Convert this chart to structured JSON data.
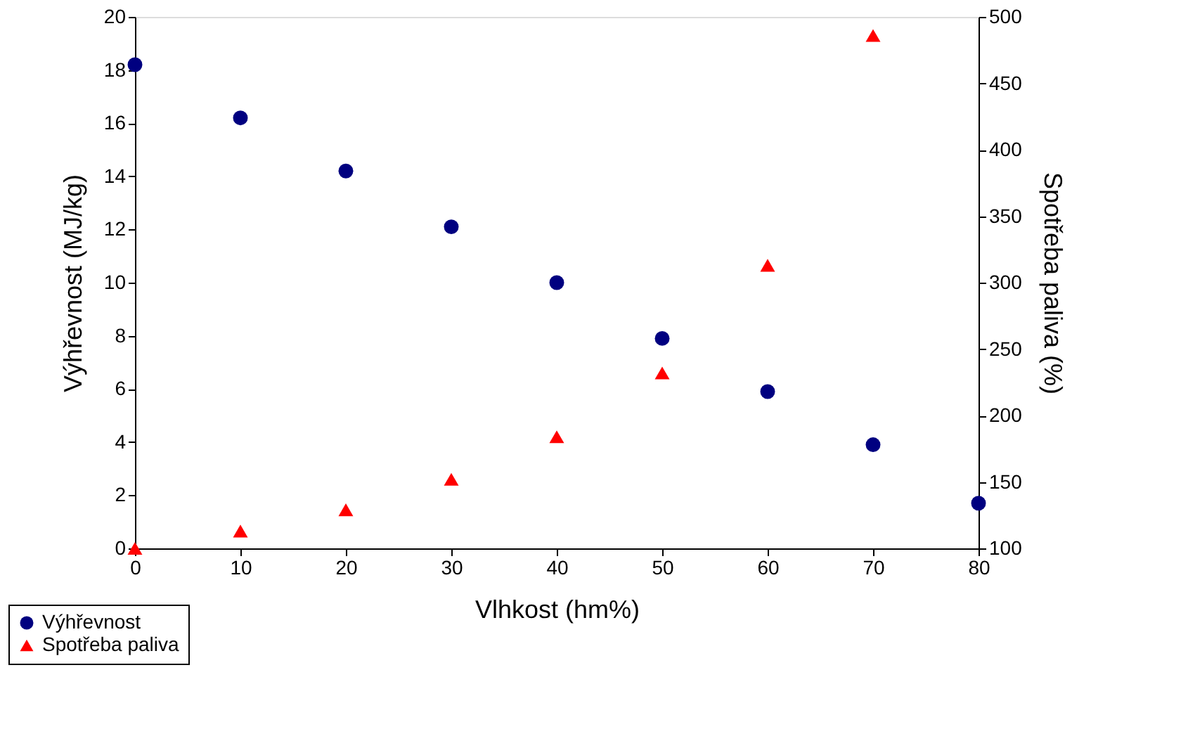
{
  "chart_data": {
    "type": "scatter",
    "xlabel": "Vlhkost (hm%)",
    "ylabel": "Výhřevnost (MJ/kg)",
    "y2label": "Spotřeba paliva (%)",
    "xlim": [
      0,
      80
    ],
    "xticks": [
      0,
      10,
      20,
      30,
      40,
      50,
      60,
      70,
      80
    ],
    "ylim": [
      0,
      20
    ],
    "yticks": [
      0,
      2,
      4,
      6,
      8,
      10,
      12,
      14,
      16,
      18,
      20
    ],
    "y2lim": [
      100,
      500
    ],
    "y2ticks": [
      100,
      150,
      200,
      250,
      300,
      350,
      400,
      450,
      500
    ],
    "grid": false,
    "legend": "bottom left",
    "series": [
      {
        "name": "Výhřevnost",
        "color": "#000080",
        "marker": "circle",
        "x": [
          0,
          10,
          20,
          30,
          40,
          50,
          60,
          70,
          80
        ],
        "values": [
          18.2,
          16.2,
          14.2,
          12.1,
          10.0,
          7.9,
          5.9,
          3.9,
          1.7
        ]
      },
      {
        "name": "Spotřeba paliva",
        "color": "#ff0000",
        "marker": "triangle",
        "axis": "y2",
        "x": [
          0,
          10,
          20,
          30,
          40,
          50,
          60,
          70
        ],
        "values": [
          100,
          113,
          129,
          152,
          184,
          232,
          313,
          486
        ]
      }
    ]
  }
}
